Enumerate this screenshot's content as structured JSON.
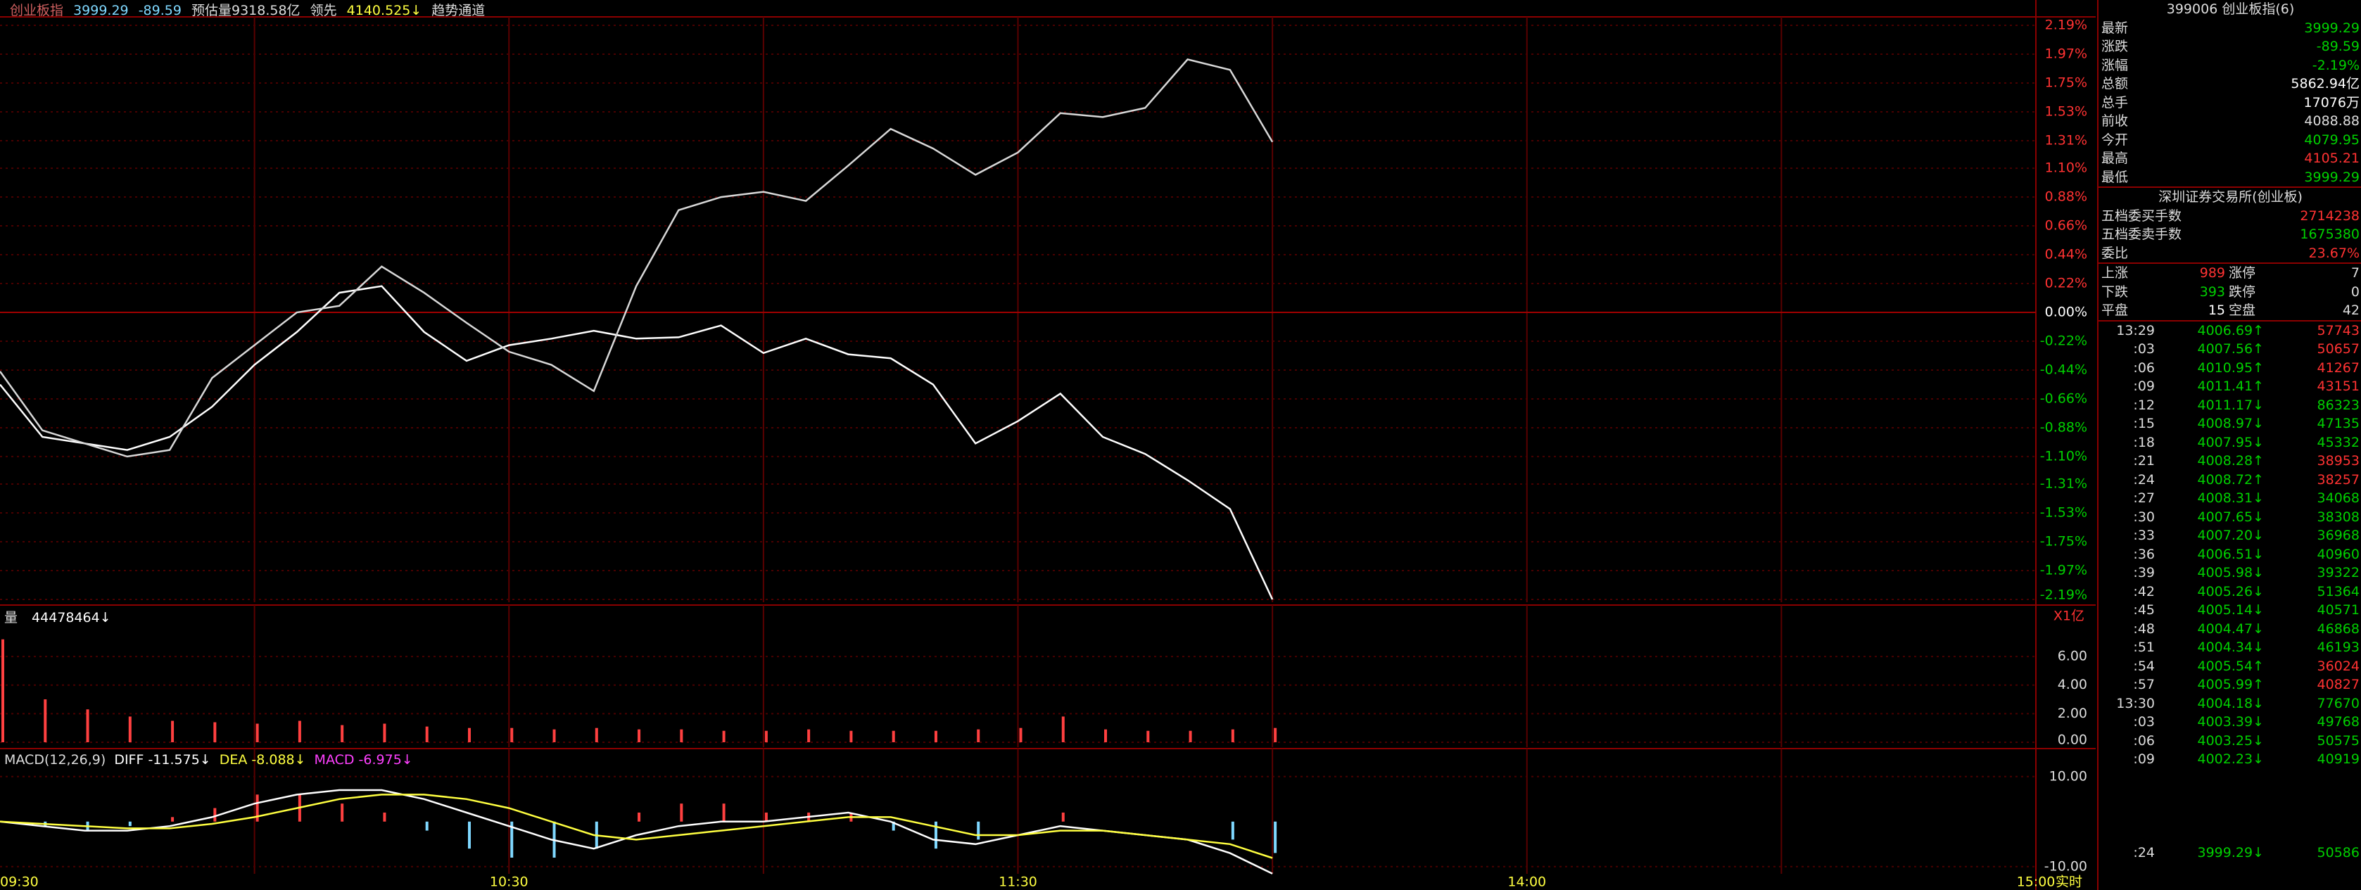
{
  "header": {
    "name": "创业板指",
    "price": "3999.29",
    "change": "-89.59",
    "est_volume": "预估量9318.58亿",
    "lead_label": "领先",
    "lead_value": "4140.525↓",
    "channel": "趋势通道"
  },
  "chart_data": [
    {
      "type": "line",
      "x": [
        "09:30",
        "09:35",
        "09:40",
        "09:45",
        "09:50",
        "09:55",
        "10:00",
        "10:05",
        "10:10",
        "10:15",
        "10:20",
        "10:25",
        "10:30",
        "10:35",
        "10:40",
        "10:45",
        "10:50",
        "10:55",
        "11:00",
        "11:05",
        "11:10",
        "11:15",
        "11:20",
        "11:25",
        "11:30",
        "13:05",
        "13:10",
        "13:15",
        "13:20",
        "13:25",
        "13:30"
      ],
      "series": [
        {
          "name": "创业板指",
          "color": "#ffffff",
          "values": [
            -0.55,
            -0.95,
            -1.0,
            -1.05,
            -0.95,
            -0.72,
            -0.4,
            -0.15,
            0.15,
            0.2,
            -0.15,
            -0.37,
            -0.25,
            -0.2,
            -0.14,
            -0.2,
            -0.19,
            -0.1,
            -0.31,
            -0.2,
            -0.32,
            -0.35,
            -0.55,
            -1.0,
            -0.83,
            -0.62,
            -0.95,
            -1.08,
            -1.28,
            -1.5,
            -2.19
          ]
        },
        {
          "name": "领先",
          "color": "#d8d8d8",
          "values": [
            -0.45,
            -0.9,
            -1.0,
            -1.1,
            -1.05,
            -0.5,
            -0.25,
            0.0,
            0.05,
            0.35,
            0.15,
            -0.08,
            -0.3,
            -0.4,
            -0.6,
            0.2,
            0.78,
            0.88,
            0.92,
            0.85,
            1.12,
            1.4,
            1.25,
            1.05,
            1.22,
            1.52,
            1.49,
            1.56,
            1.93,
            1.85,
            1.3
          ]
        }
      ],
      "ylim": [
        -2.19,
        2.19
      ],
      "yticks": [
        {
          "value": 2.19,
          "label": "2.19%"
        },
        {
          "value": 1.97,
          "label": "1.97%"
        },
        {
          "value": 1.75,
          "label": "1.75%"
        },
        {
          "value": 1.53,
          "label": "1.53%"
        },
        {
          "value": 1.31,
          "label": "1.31%"
        },
        {
          "value": 1.1,
          "label": "1.10%"
        },
        {
          "value": 0.88,
          "label": "0.88%"
        },
        {
          "value": 0.66,
          "label": "0.66%"
        },
        {
          "value": 0.44,
          "label": "0.44%"
        },
        {
          "value": 0.22,
          "label": "0.22%"
        },
        {
          "value": 0,
          "label": "0.00%"
        },
        {
          "value": -0.22,
          "label": "-0.22%"
        },
        {
          "value": -0.44,
          "label": "-0.44%"
        },
        {
          "value": -0.66,
          "label": "-0.66%"
        },
        {
          "value": -0.88,
          "label": "-0.88%"
        },
        {
          "value": -1.1,
          "label": "-1.10%"
        },
        {
          "value": -1.31,
          "label": "-1.31%"
        },
        {
          "value": -1.53,
          "label": "-1.53%"
        },
        {
          "value": -1.75,
          "label": "-1.75%"
        },
        {
          "value": -1.97,
          "label": "-1.97%"
        },
        {
          "value": -2.19,
          "label": "-2.19%"
        }
      ],
      "xticks": [
        "09:30",
        "10:30",
        "11:30",
        "14:00",
        "15:00"
      ],
      "x_note": "实时",
      "grid": true
    },
    {
      "type": "bar",
      "title": "量",
      "name": "44478464↓",
      "unit": "X1亿",
      "color": "#ff4040",
      "x": [
        "09:30",
        "09:35",
        "09:40",
        "09:45",
        "09:50",
        "09:55",
        "10:00",
        "10:05",
        "10:10",
        "10:15",
        "10:20",
        "10:25",
        "10:30",
        "10:35",
        "10:40",
        "10:45",
        "10:50",
        "10:55",
        "11:00",
        "11:05",
        "11:10",
        "11:15",
        "11:20",
        "11:25",
        "11:30",
        "13:05",
        "13:10",
        "13:15",
        "13:20",
        "13:25",
        "13:30"
      ],
      "values": [
        7.2,
        3.0,
        2.3,
        1.8,
        1.5,
        1.4,
        1.3,
        1.5,
        1.2,
        1.3,
        1.1,
        1.0,
        1.0,
        0.9,
        1.0,
        0.9,
        0.9,
        0.8,
        0.8,
        0.9,
        0.8,
        0.8,
        0.8,
        0.9,
        1.0,
        1.8,
        0.9,
        0.8,
        0.8,
        0.9,
        1.0
      ],
      "ylim": [
        0,
        9.5
      ],
      "yticks": [
        {
          "value": 0,
          "label": "0.00"
        },
        {
          "value": 2,
          "label": "2.00"
        },
        {
          "value": 4,
          "label": "4.00"
        },
        {
          "value": 6,
          "label": "6.00"
        }
      ]
    },
    {
      "type": "macd",
      "title": "MACD(12,26,9)",
      "name": "MACD -6.975↓",
      "up_color": "#ff4040",
      "down_color": "#7fd8ff",
      "x": [
        "09:30",
        "09:35",
        "09:40",
        "09:45",
        "09:50",
        "09:55",
        "10:00",
        "10:05",
        "10:10",
        "10:15",
        "10:20",
        "10:25",
        "10:30",
        "10:35",
        "10:40",
        "10:45",
        "10:50",
        "10:55",
        "11:00",
        "11:05",
        "11:10",
        "11:15",
        "11:20",
        "11:25",
        "11:30",
        "13:05",
        "13:10",
        "13:15",
        "13:20",
        "13:25",
        "13:30"
      ],
      "series": [
        {
          "name": "DIFF -11.575↓",
          "color": "#ffffff",
          "values": [
            0,
            -1,
            -2,
            -2,
            -1,
            1,
            4,
            6,
            7,
            7,
            5,
            2,
            -1,
            -4,
            -6,
            -3,
            -1,
            0,
            0,
            1,
            2,
            0,
            -4,
            -5,
            -3,
            -1,
            -2,
            -3,
            -4,
            -7,
            -11.575
          ]
        },
        {
          "name": "DEA -8.088↓",
          "color": "#ffff40",
          "values": [
            0,
            -0.5,
            -1,
            -1.5,
            -1.5,
            -0.5,
            1,
            3,
            5,
            6,
            6,
            5,
            3,
            0,
            -3,
            -4,
            -3,
            -2,
            -1,
            0,
            1,
            1,
            -1,
            -3,
            -3,
            -2,
            -2,
            -3,
            -4,
            -5,
            -8.088
          ]
        }
      ],
      "values": [
        0,
        -1,
        -2,
        -1,
        1,
        3,
        6,
        6,
        4,
        2,
        -2,
        -6,
        -8,
        -8,
        -6,
        2,
        4,
        4,
        2,
        2,
        2,
        -2,
        -6,
        -4,
        0,
        2,
        0,
        0,
        0,
        -4,
        -6.975
      ],
      "ylim": [
        -11.6,
        15.9
      ],
      "yticks": [
        {
          "value": 10,
          "label": "10.00"
        },
        {
          "value": -10,
          "label": "-10.00"
        }
      ]
    }
  ],
  "quote": {
    "title": "399006 创业板指(6)",
    "rows": [
      {
        "label": "最新",
        "value": "3999.29",
        "color": "#00d000"
      },
      {
        "label": "涨跌",
        "value": "-89.59",
        "color": "#00d000"
      },
      {
        "label": "涨幅",
        "value": "-2.19%",
        "color": "#00d000"
      },
      {
        "label": "总额",
        "value": "5862.94亿",
        "color": "#ffffff"
      },
      {
        "label": "总手",
        "value": "17076万",
        "color": "#ffffff"
      },
      {
        "label": "前收",
        "value": "4088.88",
        "color": "#dddddd"
      },
      {
        "label": "今开",
        "value": "4079.95",
        "color": "#00d000"
      },
      {
        "label": "最高",
        "value": "4105.21",
        "color": "#ff3232"
      },
      {
        "label": "最低",
        "value": "3999.29",
        "color": "#00d000"
      }
    ]
  },
  "exchange": {
    "title": "深圳证券交易所(创业板)",
    "rows": [
      {
        "label": "五档委买手数",
        "value": "2714238",
        "color": "#ff3232"
      },
      {
        "label": "五档委卖手数",
        "value": "1675380",
        "color": "#00d000"
      },
      {
        "label": "委比",
        "value": "23.67%",
        "color": "#ff3232"
      }
    ]
  },
  "breadth": {
    "rows": [
      {
        "label": "上涨",
        "value": "989",
        "label2": "涨停",
        "value2": "7",
        "color": "#ff3232"
      },
      {
        "label": "下跌",
        "value": "393",
        "label2": "跌停",
        "value2": "0",
        "color": "#00d000"
      },
      {
        "label": "平盘",
        "value": "15",
        "label2": "空盘",
        "value2": "42",
        "color": "#ffffff"
      }
    ]
  },
  "trades": {
    "rows": [
      [
        "13:29",
        "4006.69↑",
        "57743"
      ],
      [
        ":03",
        "4007.56↑",
        "50657"
      ],
      [
        ":06",
        "4010.95↑",
        "41267"
      ],
      [
        ":09",
        "4011.41↑",
        "43151"
      ],
      [
        ":12",
        "4011.17↓",
        "86323"
      ],
      [
        ":15",
        "4008.97↓",
        "47135"
      ],
      [
        ":18",
        "4007.95↓",
        "45332"
      ],
      [
        ":21",
        "4008.28↑",
        "38953"
      ],
      [
        ":24",
        "4008.72↑",
        "38257"
      ],
      [
        ":27",
        "4008.31↓",
        "34068"
      ],
      [
        ":30",
        "4007.65↓",
        "38308"
      ],
      [
        ":33",
        "4007.20↓",
        "36968"
      ],
      [
        ":36",
        "4006.51↓",
        "40960"
      ],
      [
        ":39",
        "4005.98↓",
        "39322"
      ],
      [
        ":42",
        "4005.26↓",
        "51364"
      ],
      [
        ":45",
        "4005.14↓",
        "40571"
      ],
      [
        ":48",
        "4004.47↓",
        "46868"
      ],
      [
        ":51",
        "4004.34↓",
        "46193"
      ],
      [
        ":54",
        "4005.54↑",
        "36024"
      ],
      [
        ":57",
        "4005.99↑",
        "40827"
      ],
      [
        "13:30",
        "4004.18↓",
        "77670"
      ],
      [
        ":03",
        "4003.39↓",
        "49768"
      ],
      [
        ":06",
        "4003.25↓",
        "50575"
      ],
      [
        ":09",
        "4002.23↓",
        "40919"
      ],
      [
        ":24",
        "3999.29↓",
        "50586"
      ]
    ]
  }
}
